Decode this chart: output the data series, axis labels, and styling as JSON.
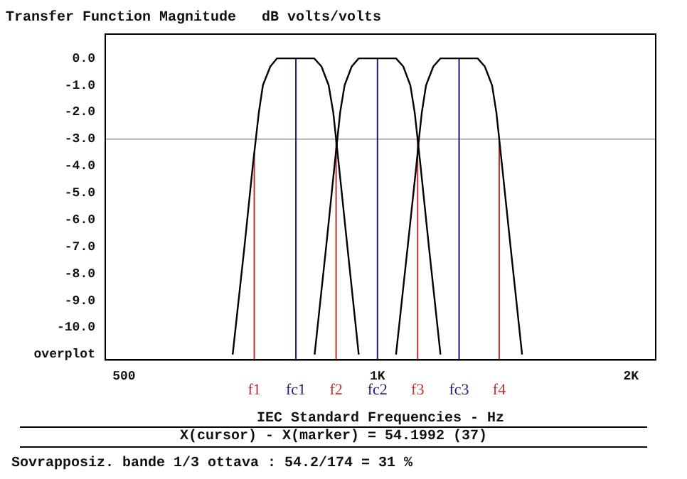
{
  "chart_data": {
    "type": "line",
    "title": "Transfer Function Magnitude   dB volts/volts",
    "xlabel": "IEC Standard Frequencies - Hz",
    "log": "x",
    "xlim": [
      475,
      2140
    ],
    "xticks": [
      500,
      {
        "value": 1000,
        "label": "1K"
      },
      {
        "value": 2000,
        "label": "2K"
      }
    ],
    "ylim": [
      -11.2,
      0.9
    ],
    "yticks": [
      {
        "value": 0,
        "label": "0.0"
      },
      {
        "value": -1,
        "label": "-1.0"
      },
      {
        "value": -2,
        "label": "-2.0"
      },
      {
        "value": -3,
        "label": "-3.0"
      },
      {
        "value": -4,
        "label": "-4.0"
      },
      {
        "value": -5,
        "label": "-5.0"
      },
      {
        "value": -6,
        "label": "-6.0"
      },
      {
        "value": -7,
        "label": "-7.0"
      },
      {
        "value": -8,
        "label": "-8.0"
      },
      {
        "value": -9,
        "label": "-9.0"
      },
      {
        "value": -10,
        "label": "-10.0"
      },
      {
        "value": -11,
        "label": "overplot"
      }
    ],
    "grid": false,
    "legend": false,
    "marker": "none",
    "line_style": "solid",
    "series": [
      {
        "color": "#000000",
        "x": [
          673,
          695,
          711,
          717,
          723,
          731,
          746,
          760,
          841,
          858,
          875,
          886,
          893,
          900,
          921,
          950
        ],
        "values": [
          -11,
          -7,
          -4,
          -3,
          -2,
          -1,
          -0.3,
          0,
          0,
          -0.3,
          -1,
          -2,
          -3,
          -4,
          -7,
          -11
        ]
      },
      {
        "color": "#000000",
        "x": [
          842,
          869,
          889,
          896,
          903,
          914,
          932,
          950,
          1052,
          1073,
          1094,
          1107,
          1116,
          1125,
          1151,
          1188
        ],
        "values": [
          -11,
          -7,
          -4,
          -3,
          -2,
          -1,
          -0.3,
          0,
          0,
          -0.3,
          -1,
          -2,
          -3,
          -4,
          -7,
          -11
        ]
      },
      {
        "color": "#000000",
        "x": [
          1052,
          1086,
          1112,
          1120,
          1129,
          1142,
          1165,
          1188,
          1315,
          1341,
          1368,
          1384,
          1395,
          1406,
          1439,
          1485
        ],
        "values": [
          -11,
          -7,
          -4,
          -3,
          -2,
          -1,
          -0.3,
          0,
          0,
          -0.3,
          -1,
          -2,
          -3,
          -4,
          -7,
          -11
        ]
      }
    ],
    "ref_lines": [
      {
        "axis": "y",
        "value": -3,
        "color": "#b0b0b0"
      },
      {
        "axis": "x",
        "value": 714,
        "label": "f1",
        "color": "#c03030"
      },
      {
        "axis": "x",
        "value": 800,
        "label": "fc1",
        "color": "#1a1a7a"
      },
      {
        "axis": "x",
        "value": 893,
        "label": "f2",
        "color": "#c03030"
      },
      {
        "axis": "x",
        "value": 1000,
        "label": "fc2",
        "color": "#1a1a7a"
      },
      {
        "axis": "x",
        "value": 1116,
        "label": "f3",
        "color": "#c03030"
      },
      {
        "axis": "x",
        "value": 1250,
        "label": "fc3",
        "color": "#1a1a7a"
      },
      {
        "axis": "x",
        "value": 1395,
        "label": "f4",
        "color": "#c03030"
      }
    ],
    "annotations": [
      "X(cursor) - X(marker) = 54.1992 (37)",
      "Sovrapposiz. bande 1/3 ottava : 54.2/174 = 31 %"
    ]
  }
}
